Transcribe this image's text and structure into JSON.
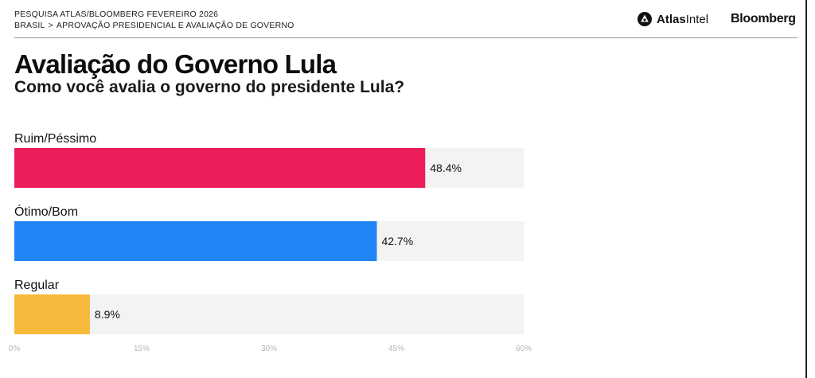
{
  "header": {
    "survey_name": "PESQUISA ATLAS/BLOOMBERG FEVEREIRO 2026",
    "breadcrumb": [
      "BRASIL",
      "APROVAÇÃO PRESIDENCIAL E AVALIAÇÃO DE GOVERNO"
    ],
    "breadcrumb_separator": ">",
    "logo_atlas_bold": "Atlas",
    "logo_atlas_light": "Intel",
    "logo_bloomberg": "Bloomberg"
  },
  "title": "Avaliação do Governo Lula",
  "subtitle": "Como você avalia o governo do presidente Lula?",
  "chart_data": {
    "type": "bar",
    "orientation": "horizontal",
    "categories": [
      "Ruim/Péssimo",
      "Ótimo/Bom",
      "Regular"
    ],
    "values": [
      48.4,
      42.7,
      8.9
    ],
    "value_labels": [
      "48.4%",
      "42.7%",
      "8.9%"
    ],
    "colors": [
      "#ec1d5b",
      "#2185f7",
      "#f6bb3c"
    ],
    "track_color": "#f3f3f2",
    "xlim": [
      0,
      60
    ],
    "xticks": [
      0,
      15,
      30,
      45,
      60
    ],
    "xtick_labels": [
      "0%",
      "15%",
      "30%",
      "45%",
      "60%"
    ],
    "grid": false,
    "legend": "none"
  }
}
